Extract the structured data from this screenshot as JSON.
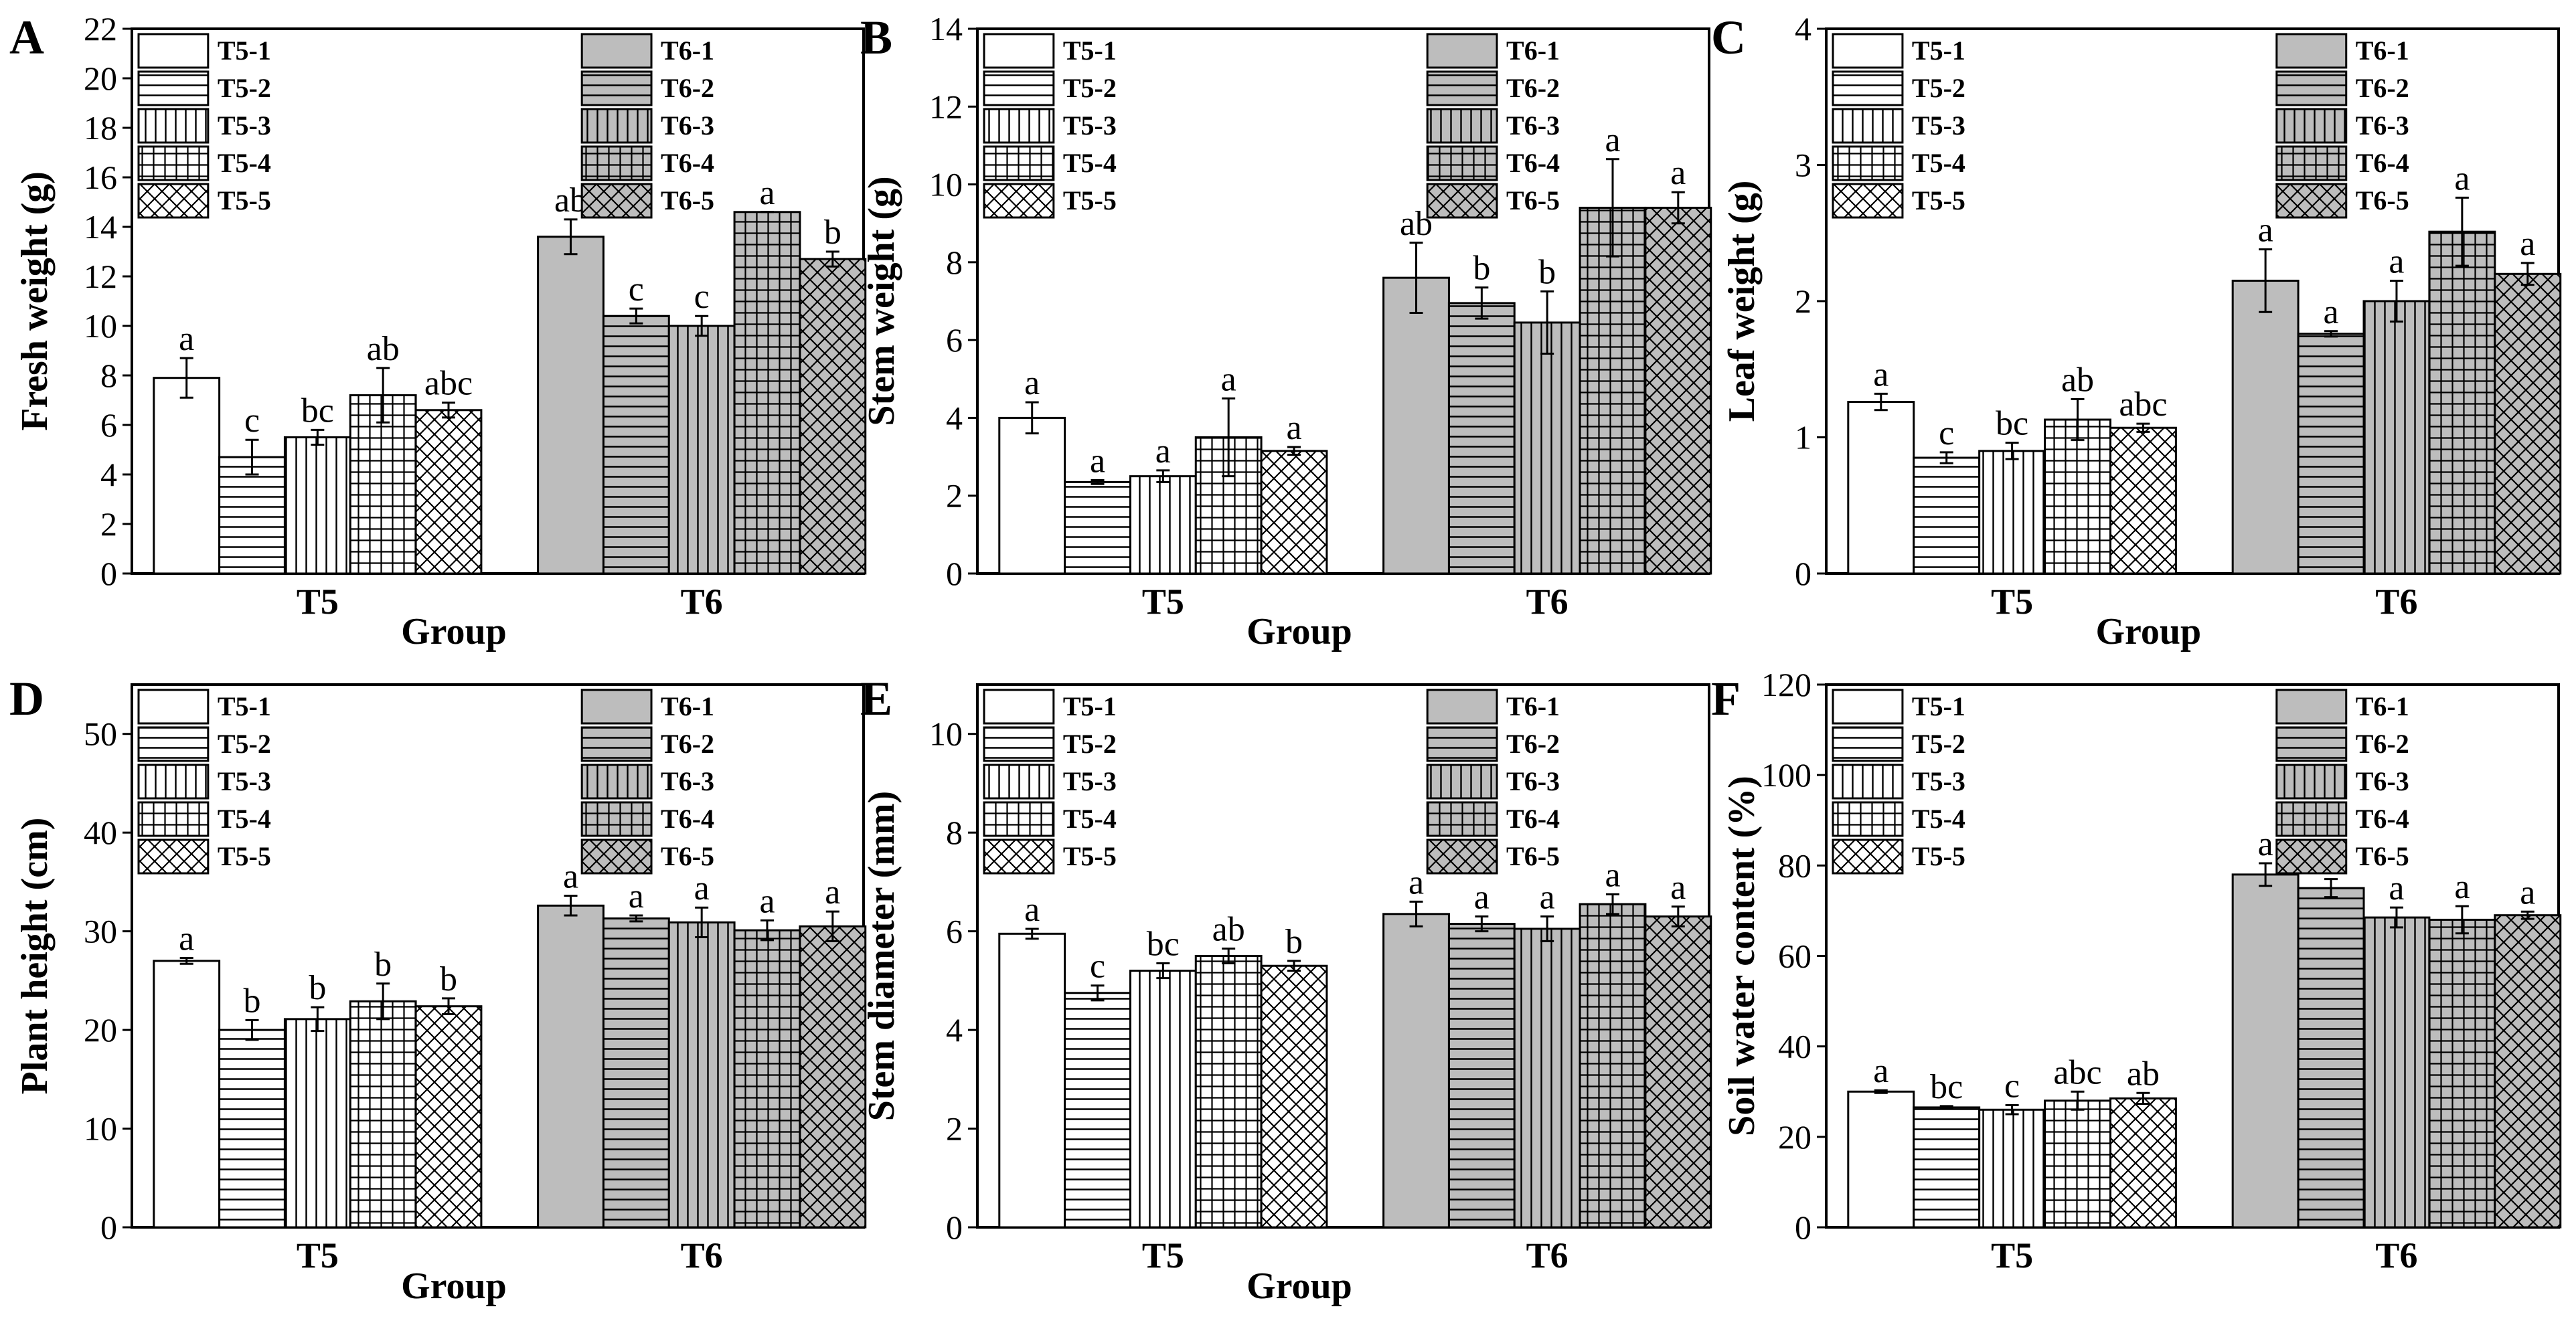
{
  "figure_title": "",
  "colors": {
    "t5_fill": "#ffffff",
    "t6_fill": "#bdbdbd",
    "stroke": "#000000"
  },
  "chart_data": [
    {
      "type": "bar",
      "panel": "A",
      "title": "",
      "ylabel": "Fresh weight (g)",
      "xlabel": "Group",
      "categories": [
        "T5",
        "T6"
      ],
      "ylim": [
        0,
        22
      ],
      "yticks": [
        0,
        2,
        4,
        6,
        8,
        10,
        12,
        14,
        16,
        18,
        20,
        22
      ],
      "series": [
        {
          "name": "T5-1",
          "values": [
            7.9,
            13.6
          ],
          "errors": [
            0.8,
            0.7
          ],
          "labels": [
            "a",
            "ab"
          ]
        },
        {
          "name": "T5-2",
          "values": [
            4.7,
            10.4
          ],
          "errors": [
            0.7,
            0.3
          ],
          "labels": [
            "c",
            "c"
          ]
        },
        {
          "name": "T5-3",
          "values": [
            5.5,
            10.0
          ],
          "errors": [
            0.3,
            0.4
          ],
          "labels": [
            "bc",
            "c"
          ]
        },
        {
          "name": "T5-4",
          "values": [
            7.2,
            14.6
          ],
          "errors": [
            1.1,
            0.0
          ],
          "labels": [
            "ab",
            "a"
          ]
        },
        {
          "name": "T5-5",
          "values": [
            6.6,
            12.7
          ],
          "errors": [
            0.3,
            0.3
          ],
          "labels": [
            "abc",
            "b"
          ]
        }
      ],
      "legend_left": [
        "T5-1",
        "T5-2",
        "T5-3",
        "T5-4",
        "T5-5"
      ],
      "legend_right": [
        "T6-1",
        "T6-2",
        "T6-3",
        "T6-4",
        "T6-5"
      ]
    },
    {
      "type": "bar",
      "panel": "B",
      "title": "",
      "ylabel": "Stem weight (g)",
      "xlabel": "Group",
      "categories": [
        "T5",
        "T6"
      ],
      "ylim": [
        0,
        14
      ],
      "yticks": [
        0,
        2,
        4,
        6,
        8,
        10,
        12,
        14
      ],
      "series": [
        {
          "name": "T5-1",
          "values": [
            4.0,
            7.6
          ],
          "errors": [
            0.4,
            0.9
          ],
          "labels": [
            "a",
            "ab"
          ]
        },
        {
          "name": "T5-2",
          "values": [
            2.35,
            6.95
          ],
          "errors": [
            0.05,
            0.4
          ],
          "labels": [
            "a",
            "b"
          ]
        },
        {
          "name": "T5-3",
          "values": [
            2.5,
            6.45
          ],
          "errors": [
            0.15,
            0.8
          ],
          "labels": [
            "a",
            "b"
          ]
        },
        {
          "name": "T5-4",
          "values": [
            3.5,
            9.4
          ],
          "errors": [
            1.0,
            1.25
          ],
          "labels": [
            "a",
            "a"
          ]
        },
        {
          "name": "T5-5",
          "values": [
            3.15,
            9.4
          ],
          "errors": [
            0.1,
            0.4
          ],
          "labels": [
            "a",
            "a"
          ]
        }
      ],
      "legend_left": [
        "T5-1",
        "T5-2",
        "T5-3",
        "T5-4",
        "T5-5"
      ],
      "legend_right": [
        "T6-1",
        "T6-2",
        "T6-3",
        "T6-4",
        "T6-5"
      ]
    },
    {
      "type": "bar",
      "panel": "C",
      "title": "",
      "ylabel": "Leaf weight (g)",
      "xlabel": "Group",
      "categories": [
        "T5",
        "T6"
      ],
      "ylim": [
        0,
        4
      ],
      "yticks": [
        0,
        1,
        2,
        3,
        4
      ],
      "series": [
        {
          "name": "T5-1",
          "values": [
            1.26,
            2.15
          ],
          "errors": [
            0.06,
            0.23
          ],
          "labels": [
            "a",
            "a"
          ]
        },
        {
          "name": "T5-2",
          "values": [
            0.85,
            1.76
          ],
          "errors": [
            0.04,
            0.02
          ],
          "labels": [
            "c",
            "a"
          ]
        },
        {
          "name": "T5-3",
          "values": [
            0.9,
            2.0
          ],
          "errors": [
            0.06,
            0.15
          ],
          "labels": [
            "bc",
            "a"
          ]
        },
        {
          "name": "T5-4",
          "values": [
            1.13,
            2.51
          ],
          "errors": [
            0.15,
            0.25
          ],
          "labels": [
            "ab",
            "a"
          ]
        },
        {
          "name": "T5-5",
          "values": [
            1.07,
            2.2
          ],
          "errors": [
            0.03,
            0.08
          ],
          "labels": [
            "abc",
            "a"
          ]
        }
      ],
      "legend_left": [
        "T5-1",
        "T5-2",
        "T5-3",
        "T5-4",
        "T5-5"
      ],
      "legend_right": [
        "T6-1",
        "T6-2",
        "T6-3",
        "T6-4",
        "T6-5"
      ]
    },
    {
      "type": "bar",
      "panel": "D",
      "title": "",
      "ylabel": "Plant height (cm)",
      "xlabel": "Group",
      "categories": [
        "T5",
        "T6"
      ],
      "ylim": [
        0,
        55
      ],
      "yticks": [
        0,
        10,
        20,
        30,
        40,
        50
      ],
      "series": [
        {
          "name": "T5-1",
          "values": [
            27.0,
            32.6
          ],
          "errors": [
            0.3,
            1.0
          ],
          "labels": [
            "a",
            "a"
          ]
        },
        {
          "name": "T5-2",
          "values": [
            20.0,
            31.3
          ],
          "errors": [
            1.0,
            0.3
          ],
          "labels": [
            "b",
            "a"
          ]
        },
        {
          "name": "T5-3",
          "values": [
            21.1,
            30.9
          ],
          "errors": [
            1.2,
            1.5
          ],
          "labels": [
            "b",
            "a"
          ]
        },
        {
          "name": "T5-4",
          "values": [
            22.9,
            30.1
          ],
          "errors": [
            1.8,
            1.0
          ],
          "labels": [
            "b",
            "a"
          ]
        },
        {
          "name": "T5-5",
          "values": [
            22.4,
            30.5
          ],
          "errors": [
            0.8,
            1.5
          ],
          "labels": [
            "b",
            "a"
          ]
        }
      ],
      "legend_left": [
        "T5-1",
        "T5-2",
        "T5-3",
        "T5-4",
        "T5-5"
      ],
      "legend_right": [
        "T6-1",
        "T6-2",
        "T6-3",
        "T6-4",
        "T6-5"
      ]
    },
    {
      "type": "bar",
      "panel": "E",
      "title": "",
      "ylabel": "Stem diameter (mm)",
      "xlabel": "Group",
      "categories": [
        "T5",
        "T6"
      ],
      "ylim": [
        0,
        11
      ],
      "yticks": [
        0,
        2,
        4,
        6,
        8,
        10
      ],
      "series": [
        {
          "name": "T5-1",
          "values": [
            5.95,
            6.35
          ],
          "errors": [
            0.1,
            0.25
          ],
          "labels": [
            "a",
            "a"
          ]
        },
        {
          "name": "T5-2",
          "values": [
            4.75,
            6.15
          ],
          "errors": [
            0.15,
            0.15
          ],
          "labels": [
            "c",
            "a"
          ]
        },
        {
          "name": "T5-3",
          "values": [
            5.2,
            6.05
          ],
          "errors": [
            0.15,
            0.25
          ],
          "labels": [
            "bc",
            "a"
          ]
        },
        {
          "name": "T5-4",
          "values": [
            5.5,
            6.55
          ],
          "errors": [
            0.15,
            0.2
          ],
          "labels": [
            "ab",
            "a"
          ]
        },
        {
          "name": "T5-5",
          "values": [
            5.3,
            6.3
          ],
          "errors": [
            0.1,
            0.2
          ],
          "labels": [
            "b",
            "a"
          ]
        }
      ],
      "legend_left": [
        "T5-1",
        "T5-2",
        "T5-3",
        "T5-4",
        "T5-5"
      ],
      "legend_right": [
        "T6-1",
        "T6-2",
        "T6-3",
        "T6-4",
        "T6-5"
      ]
    },
    {
      "type": "bar",
      "panel": "F",
      "title": "",
      "ylabel": "Soil water content (%)",
      "xlabel": "",
      "categories": [
        "T5",
        "T6"
      ],
      "ylim": [
        0,
        120
      ],
      "yticks": [
        0,
        20,
        40,
        60,
        80,
        100,
        120
      ],
      "series": [
        {
          "name": "T5-1",
          "values": [
            30.0,
            78.0
          ],
          "errors": [
            0.3,
            2.5
          ],
          "labels": [
            "a",
            "a"
          ]
        },
        {
          "name": "T5-2",
          "values": [
            26.5,
            75.0
          ],
          "errors": [
            0.3,
            2.0
          ],
          "labels": [
            "bc",
            "a"
          ]
        },
        {
          "name": "T5-3",
          "values": [
            26.0,
            68.5
          ],
          "errors": [
            1.0,
            2.2
          ],
          "labels": [
            "c",
            "a"
          ]
        },
        {
          "name": "T5-4",
          "values": [
            28.0,
            68.0
          ],
          "errors": [
            2.0,
            3.0
          ],
          "labels": [
            "abc",
            "a"
          ]
        },
        {
          "name": "T5-5",
          "values": [
            28.5,
            69.0
          ],
          "errors": [
            1.2,
            0.8
          ],
          "labels": [
            "ab",
            "a"
          ]
        }
      ],
      "legend_left": [
        "T5-1",
        "T5-2",
        "T5-3",
        "T5-4",
        "T5-5"
      ],
      "legend_right": [
        "T6-1",
        "T6-2",
        "T6-3",
        "T6-4",
        "T6-5"
      ]
    }
  ]
}
